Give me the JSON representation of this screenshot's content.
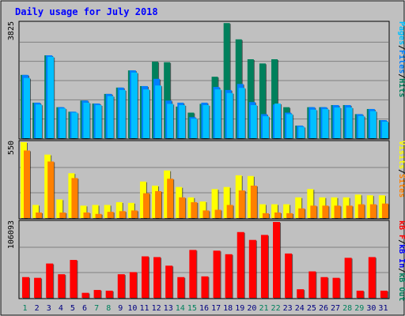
{
  "chart_data": {
    "type": "bar",
    "title": "Daily usage for July 2018",
    "colors": {
      "background": "#ffffff",
      "frame": "#c0c0c0",
      "plot_bg": "#c0c0c0",
      "grid": "#808080",
      "title": "#0000ff",
      "pages": "#00c0ff",
      "files": "#0080ff",
      "hits": "#00805c",
      "visits": "#ffff00",
      "sites": "#ff8000",
      "kb_in": "#0000ff",
      "kb_out": "#00805c",
      "kb_f": "#ff0000",
      "weekend": "#00805c",
      "weekday": "#000080"
    },
    "categories": [
      "1",
      "2",
      "3",
      "4",
      "5",
      "6",
      "7",
      "8",
      "9",
      "10",
      "11",
      "12",
      "13",
      "14",
      "15",
      "16",
      "17",
      "18",
      "19",
      "20",
      "21",
      "22",
      "23",
      "24",
      "25",
      "26",
      "27",
      "28",
      "29",
      "30",
      "31"
    ],
    "weekend_days": [
      "1",
      "7",
      "8",
      "14",
      "15",
      "21",
      "22",
      "28",
      "29"
    ],
    "panels": [
      {
        "name": "hits-files-pages",
        "max_label": "3825",
        "ymax": 3825,
        "legend": [
          {
            "text": "Pages",
            "color": "#00c0ff"
          },
          {
            "text": "/",
            "color": "#000000"
          },
          {
            "text": "Files",
            "color": "#0080ff"
          },
          {
            "text": "/",
            "color": "#000000"
          },
          {
            "text": "Hits",
            "color": "#00805c"
          }
        ],
        "series": [
          {
            "name": "Hits",
            "color": "#00805c",
            "values": [
              2100,
              1180,
              2750,
              1030,
              880,
              1250,
              1150,
              1470,
              1680,
              2250,
              1730,
              2540,
              2520,
              1050,
              850,
              1140,
              2040,
              3820,
              3280,
              2620,
              2480,
              2620,
              1030,
              420,
              1030,
              1030,
              1100,
              1100,
              800,
              970,
              600
            ]
          },
          {
            "name": "Files",
            "color": "#0080ff",
            "values": [
              2100,
              1180,
              2750,
              1030,
              880,
              1250,
              1150,
              1470,
              1680,
              2250,
              1730,
              1970,
              1250,
              1180,
              700,
              1180,
              1700,
              1600,
              1800,
              1200,
              800,
              1120,
              850,
              420,
              1030,
              1030,
              1100,
              1100,
              800,
              970,
              600
            ]
          },
          {
            "name": "Pages",
            "color": "#00c0ff",
            "values": [
              2000,
              1120,
              2700,
              990,
              850,
              1180,
              1100,
              1400,
              1600,
              2180,
              1620,
              1750,
              1140,
              1100,
              650,
              1100,
              1620,
              1500,
              1670,
              1100,
              730,
              1150,
              800,
              380,
              950,
              970,
              1020,
              1020,
              740,
              900,
              550
            ]
          }
        ]
      },
      {
        "name": "visits-sites",
        "max_label": "550",
        "ymax": 550,
        "legend": [
          {
            "text": "Visits",
            "color": "#ffff00"
          },
          {
            "text": "/",
            "color": "#000000"
          },
          {
            "text": "Sites",
            "color": "#ff8000"
          }
        ],
        "series": [
          {
            "name": "Visits",
            "color": "#ffff00",
            "values": [
              550,
              95,
              460,
              135,
              325,
              90,
              95,
              95,
              115,
              110,
              265,
              235,
              345,
              225,
              150,
              120,
              210,
              225,
              310,
              305,
              100,
              100,
              100,
              150,
              210,
              150,
              150,
              150,
              170,
              165,
              165
            ]
          },
          {
            "name": "Sites",
            "color": "#ff8000",
            "values": [
              490,
              40,
              410,
              40,
              290,
              40,
              30,
              45,
              50,
              55,
              180,
              195,
              285,
              150,
              115,
              55,
              60,
              95,
              200,
              235,
              35,
              40,
              35,
              70,
              90,
              90,
              90,
              90,
              100,
              100,
              105
            ]
          }
        ]
      },
      {
        "name": "kb-in-out-f",
        "max_label": "106093",
        "ymax": 106093,
        "legend": [
          {
            "text": "kB F",
            "color": "#ff0000"
          },
          {
            "text": "/",
            "color": "#000000"
          },
          {
            "text": "kB In",
            "color": "#0000ff"
          },
          {
            "text": "/",
            "color": "#000000"
          },
          {
            "text": "kB Out",
            "color": "#00805c"
          }
        ],
        "series": [
          {
            "name": "kB F",
            "color": "#ff0000",
            "values": [
              29000,
              28000,
              48000,
              33000,
              53000,
              7000,
              11000,
              10000,
              33000,
              36000,
              58000,
              57000,
              45000,
              29000,
              67000,
              30000,
              66000,
              61000,
              92000,
              81000,
              88000,
              106093,
              62000,
              12000,
              37000,
              29000,
              28000,
              56000,
              10000,
              57000,
              10000
            ]
          }
        ]
      }
    ]
  }
}
